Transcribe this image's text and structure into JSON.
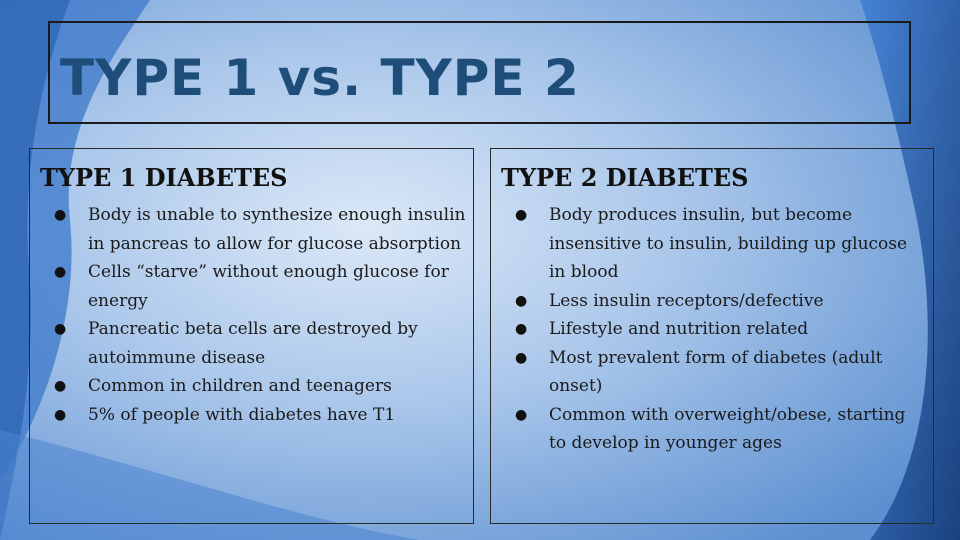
{
  "slide": {
    "title": "TYPE 1 vs. TYPE 2"
  },
  "panels": [
    {
      "heading": "TYPE 1 DIABETES",
      "bullets": [
        "Body is unable to synthesize enough insulin in pancreas to allow for glucose absorption",
        "Cells “starve” without enough glucose for energy",
        "Pancreatic beta cells are destroyed by autoimmune disease",
        "Common in children and teenagers",
        "5% of people with diabetes have T1"
      ]
    },
    {
      "heading": "TYPE 2 DIABETES",
      "bullets": [
        "Body produces insulin, but become insensitive to insulin, building up glucose in blood",
        "Less insulin receptors/defective",
        "Lifestyle and nutrition related",
        "Most prevalent form of diabetes (adult onset)",
        "Common with overweight/obese, starting to develop in younger ages"
      ]
    }
  ],
  "bullet_glyph": "●",
  "colors": {
    "title": "#1f4d7a",
    "background_light": "#c9dcf2",
    "background_dark": "#16407a"
  }
}
